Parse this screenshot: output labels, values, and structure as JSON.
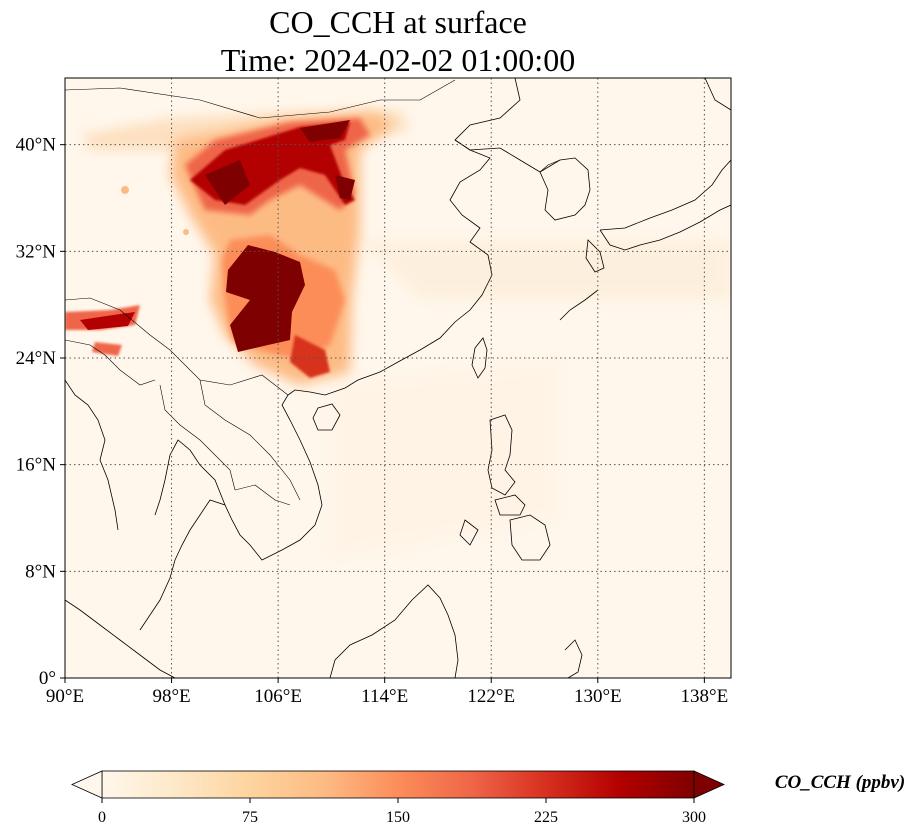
{
  "title": {
    "line1": "CO_CCH at surface",
    "line2": "Time: 2024-02-02 01:00:00"
  },
  "map": {
    "variable": "CO_CCH",
    "level": "surface",
    "time": "2024-02-02 01:00:00",
    "extent": {
      "lon_min": 90,
      "lon_max": 140,
      "lat_min": 0,
      "lat_max": 45
    },
    "lon_ticks": [
      90,
      98,
      106,
      114,
      122,
      130,
      138
    ],
    "lon_tick_labels": [
      "90°E",
      "98°E",
      "106°E",
      "114°E",
      "122°E",
      "130°E",
      "138°E"
    ],
    "lat_ticks": [
      0,
      8,
      16,
      24,
      32,
      40
    ],
    "lat_tick_labels": [
      "0°",
      "8°N",
      "16°N",
      "24°N",
      "32°N",
      "40°N"
    ],
    "gridlines": "dotted",
    "coastlines": true,
    "borders": true,
    "colormap": "OrRd",
    "background_color": "#fff7ec"
  },
  "colorbar": {
    "label": "CO_CCH (ppbv)",
    "min": 0,
    "max": 300,
    "ticks": [
      0,
      75,
      150,
      225,
      300
    ],
    "tick_labels": [
      "0",
      "75",
      "150",
      "225",
      "300"
    ],
    "extend": "both",
    "orientation": "horizontal",
    "colors": [
      "#fff7ec",
      "#fee8c8",
      "#fdd49e",
      "#fdbb84",
      "#fc8d59",
      "#ef6548",
      "#d7301f",
      "#b30000",
      "#7f0000"
    ]
  },
  "plumes": [
    {
      "region": "north-china-arc",
      "level_ppbv": 300
    },
    {
      "region": "sichuan-basin",
      "level_ppbv": 300
    },
    {
      "region": "yunnan-guizhou",
      "level_ppbv": 250
    },
    {
      "region": "northeast-india-bangladesh",
      "level_ppbv": 250
    },
    {
      "region": "west-inner-mongolia-band",
      "level_ppbv": 100
    }
  ]
}
